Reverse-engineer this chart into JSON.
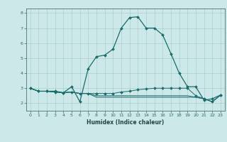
{
  "xlabel": "Humidex (Indice chaleur)",
  "background_color": "#cde8e8",
  "grid_color": "#aacfcf",
  "line_color": "#1a6b6b",
  "xlim": [
    -0.5,
    23.5
  ],
  "ylim": [
    1.5,
    8.3
  ],
  "xticks": [
    0,
    1,
    2,
    3,
    4,
    5,
    6,
    7,
    8,
    9,
    10,
    11,
    12,
    13,
    14,
    15,
    16,
    17,
    18,
    19,
    20,
    21,
    22,
    23
  ],
  "yticks": [
    2,
    3,
    4,
    5,
    6,
    7,
    8
  ],
  "line1_x": [
    0,
    1,
    2,
    3,
    4,
    5,
    6,
    7,
    8,
    9,
    10,
    11,
    12,
    13,
    14,
    15,
    16,
    17,
    18,
    19,
    20,
    21,
    22,
    23
  ],
  "line1_y": [
    3.0,
    2.8,
    2.8,
    2.8,
    2.7,
    3.1,
    2.1,
    4.3,
    5.1,
    5.2,
    5.6,
    7.0,
    7.7,
    7.75,
    7.0,
    7.0,
    6.55,
    5.3,
    4.0,
    3.1,
    3.1,
    2.2,
    2.3,
    2.55
  ],
  "line2_x": [
    0,
    1,
    2,
    3,
    4,
    5,
    6,
    7,
    8,
    9,
    10,
    11,
    12,
    13,
    14,
    15,
    16,
    17,
    18,
    19,
    20,
    21,
    22,
    23
  ],
  "line2_y": [
    3.0,
    2.8,
    2.8,
    2.75,
    2.7,
    2.75,
    2.65,
    2.65,
    2.65,
    2.65,
    2.65,
    2.75,
    2.8,
    2.9,
    2.95,
    3.0,
    3.0,
    3.0,
    3.0,
    3.0,
    2.5,
    2.3,
    2.1,
    2.55
  ],
  "line3_x": [
    0,
    1,
    2,
    3,
    4,
    5,
    6,
    7,
    8,
    9,
    10,
    11,
    12,
    13,
    14,
    15,
    16,
    17,
    18,
    19,
    20,
    21,
    22,
    23
  ],
  "line3_y": [
    3.0,
    2.8,
    2.8,
    2.75,
    2.7,
    2.75,
    2.65,
    2.65,
    2.5,
    2.5,
    2.5,
    2.5,
    2.5,
    2.5,
    2.5,
    2.5,
    2.5,
    2.5,
    2.5,
    2.5,
    2.4,
    2.3,
    2.1,
    2.55
  ],
  "line4_x": [
    0,
    1,
    2,
    3,
    4,
    5,
    6,
    7,
    8,
    9,
    10,
    11,
    12,
    13,
    14,
    15,
    16,
    17,
    18,
    19,
    20,
    21,
    22,
    23
  ],
  "line4_y": [
    3.0,
    2.8,
    2.8,
    2.75,
    2.7,
    2.75,
    2.65,
    2.65,
    2.4,
    2.4,
    2.4,
    2.4,
    2.4,
    2.4,
    2.4,
    2.4,
    2.4,
    2.4,
    2.4,
    2.4,
    2.4,
    2.3,
    2.1,
    2.55
  ]
}
